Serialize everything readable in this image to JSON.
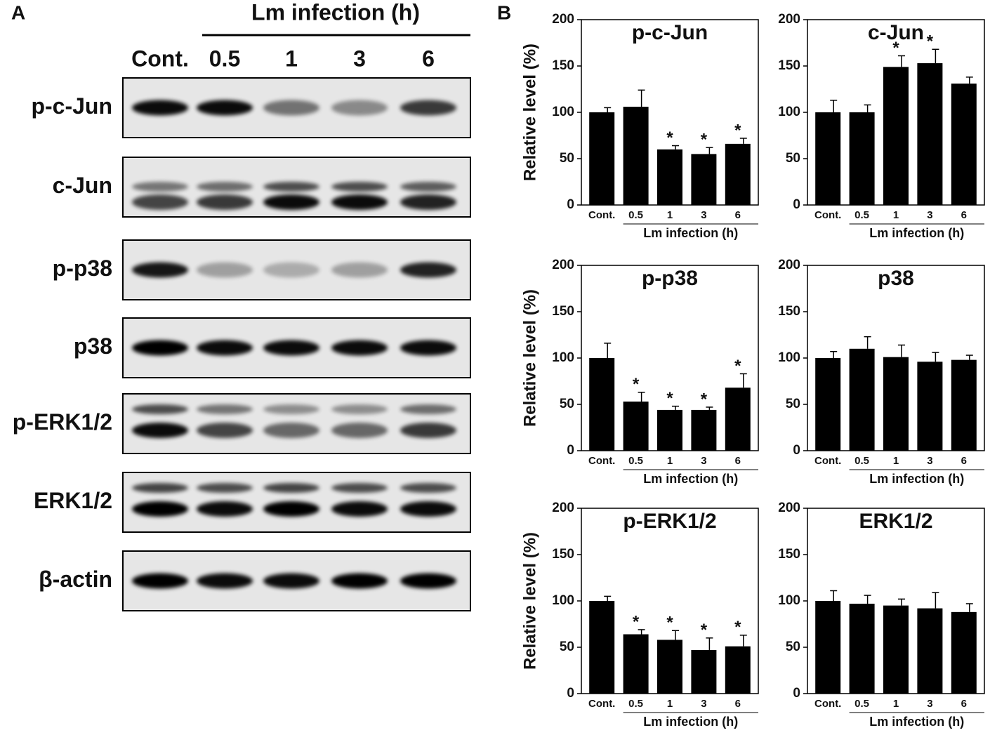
{
  "panel_a": {
    "label": "A",
    "group_label": "Lm infection (h)",
    "lanes": [
      "Cont.",
      "0.5",
      "1",
      "3",
      "6"
    ],
    "rows": [
      "p-c-Jun",
      "c-Jun",
      "p-p38",
      "p38",
      "p-ERK1/2",
      "ERK1/2",
      "β-actin"
    ]
  },
  "panel_b_label": "B",
  "chart_data": [
    {
      "type": "bar",
      "title": "p-c-Jun",
      "ylabel": "Relative level (%)",
      "xlabel": "Lm infection (h)",
      "categories": [
        "Cont.",
        "0.5",
        "1",
        "3",
        "6"
      ],
      "values": [
        100,
        106,
        60,
        55,
        66
      ],
      "errors": [
        5,
        18,
        4,
        7,
        6
      ],
      "markers": [
        null,
        null,
        "*",
        "*",
        "*"
      ],
      "color": "#000000",
      "ylim": [
        0,
        200
      ],
      "yticks": [
        0,
        50,
        100,
        150,
        200
      ]
    },
    {
      "type": "bar",
      "title": "c-Jun",
      "xlabel": "Lm infection (h)",
      "categories": [
        "Cont.",
        "0.5",
        "1",
        "3",
        "6"
      ],
      "values": [
        100,
        100,
        149,
        153,
        131
      ],
      "errors": [
        13,
        8,
        12,
        15,
        7
      ],
      "markers": [
        null,
        null,
        "*",
        "*",
        null
      ],
      "color": "#000000",
      "ylim": [
        0,
        200
      ],
      "yticks": [
        0,
        50,
        100,
        150,
        200
      ]
    },
    {
      "type": "bar",
      "title": "p-p38",
      "ylabel": "Relative level (%)",
      "xlabel": "Lm infection (h)",
      "categories": [
        "Cont.",
        "0.5",
        "1",
        "3",
        "6"
      ],
      "values": [
        100,
        53,
        44,
        44,
        68
      ],
      "errors": [
        16,
        10,
        4,
        3,
        15
      ],
      "markers": [
        null,
        "*",
        "*",
        "*",
        "*"
      ],
      "color": "#000000",
      "ylim": [
        0,
        200
      ],
      "yticks": [
        0,
        50,
        100,
        150,
        200
      ]
    },
    {
      "type": "bar",
      "title": "p38",
      "xlabel": "Lm infection (h)",
      "categories": [
        "Cont.",
        "0.5",
        "1",
        "3",
        "6"
      ],
      "values": [
        100,
        110,
        101,
        96,
        98
      ],
      "errors": [
        7,
        13,
        13,
        10,
        5
      ],
      "markers": [
        null,
        null,
        null,
        null,
        null
      ],
      "color": "#000000",
      "ylim": [
        0,
        200
      ],
      "yticks": [
        0,
        50,
        100,
        150,
        200
      ]
    },
    {
      "type": "bar",
      "title": "p-ERK1/2",
      "ylabel": "Relative level (%)",
      "xlabel": "Lm infection (h)",
      "categories": [
        "Cont.",
        "0.5",
        "1",
        "3",
        "6"
      ],
      "values": [
        100,
        64,
        58,
        47,
        51
      ],
      "errors": [
        5,
        5,
        10,
        13,
        12
      ],
      "markers": [
        null,
        "*",
        "*",
        "*",
        "*"
      ],
      "color": "#000000",
      "ylim": [
        0,
        200
      ],
      "yticks": [
        0,
        50,
        100,
        150,
        200
      ]
    },
    {
      "type": "bar",
      "title": "ERK1/2",
      "xlabel": "Lm infection (h)",
      "categories": [
        "Cont.",
        "0.5",
        "1",
        "3",
        "6"
      ],
      "values": [
        100,
        97,
        95,
        92,
        88
      ],
      "errors": [
        11,
        9,
        7,
        17,
        9
      ],
      "markers": [
        null,
        null,
        null,
        null,
        null
      ],
      "color": "#000000",
      "ylim": [
        0,
        200
      ],
      "yticks": [
        0,
        50,
        100,
        150,
        200
      ]
    }
  ]
}
